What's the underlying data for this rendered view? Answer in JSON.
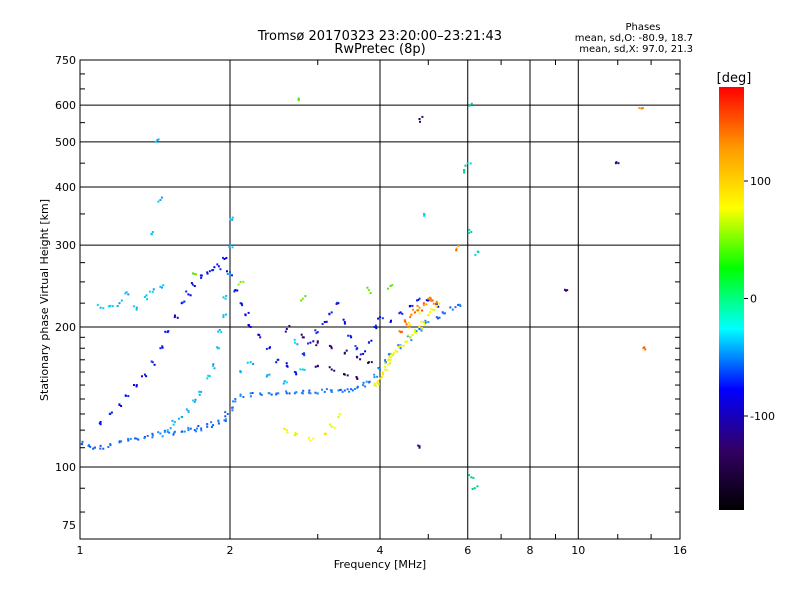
{
  "chart_data": {
    "type": "scatter",
    "title": "Tromsø 20170323 23:20:00–23:21:43",
    "subtitle": "RwPretec (8p)",
    "xlabel": "Frequency [MHz]",
    "ylabel": "Stationary phase Virtual Height [km]",
    "x_scale": "log",
    "y_scale": "log",
    "xlim": [
      1,
      16
    ],
    "ylim": [
      70,
      750
    ],
    "x_ticks": [
      1,
      2,
      4,
      6,
      8,
      10,
      16
    ],
    "y_ticks": [
      75,
      100,
      200,
      300,
      400,
      500,
      600,
      750
    ],
    "grid": true,
    "phase_info": {
      "title": "Phases",
      "line_o": "mean, sd,O: -80.9, 18.7",
      "line_x": "mean, sd,X:  97.0, 21.3"
    },
    "colorbar": {
      "label": "[deg]",
      "range": [
        -180,
        180
      ],
      "ticks": [
        100,
        0,
        -100
      ],
      "colors": [
        "#ff0000",
        "#ff9900",
        "#ffff00",
        "#00ff00",
        "#00ffff",
        "#0000ff",
        "#330066",
        "#000000"
      ]
    },
    "series": [
      {
        "values_note_free": true,
        "phase": -70,
        "points": [
          [
            1.01,
            112
          ],
          [
            1.04,
            111
          ],
          [
            1.07,
            110
          ],
          [
            1.1,
            111
          ],
          [
            1.15,
            112
          ],
          [
            1.2,
            113
          ],
          [
            1.25,
            114
          ],
          [
            1.3,
            115
          ],
          [
            1.35,
            116
          ],
          [
            1.4,
            117
          ],
          [
            1.45,
            118
          ],
          [
            1.5,
            119
          ],
          [
            1.55,
            119
          ],
          [
            1.6,
            119
          ],
          [
            1.65,
            120
          ],
          [
            1.7,
            120
          ],
          [
            1.75,
            121
          ],
          [
            1.8,
            122
          ],
          [
            1.85,
            123
          ],
          [
            1.9,
            124
          ],
          [
            1.95,
            126
          ],
          [
            1.98,
            130
          ],
          [
            2.02,
            134
          ],
          [
            2.05,
            140
          ],
          [
            2.1,
            143
          ],
          [
            2.2,
            144
          ],
          [
            2.3,
            144
          ],
          [
            2.4,
            144
          ],
          [
            2.5,
            144
          ],
          [
            2.6,
            144
          ],
          [
            2.7,
            144
          ],
          [
            2.8,
            144
          ],
          [
            2.9,
            144
          ],
          [
            3.0,
            144
          ],
          [
            3.1,
            145
          ],
          [
            3.2,
            145
          ],
          [
            3.3,
            146
          ],
          [
            3.4,
            146
          ],
          [
            3.5,
            147
          ],
          [
            3.6,
            148
          ],
          [
            3.7,
            150
          ],
          [
            3.8,
            152
          ],
          [
            3.9,
            156
          ],
          [
            4.0,
            162
          ],
          [
            4.1,
            168
          ],
          [
            4.2,
            175
          ],
          [
            4.4,
            180
          ],
          [
            4.6,
            190
          ],
          [
            4.8,
            198
          ],
          [
            5.0,
            205
          ],
          [
            5.2,
            210
          ],
          [
            5.4,
            214
          ],
          [
            5.6,
            218
          ],
          [
            5.8,
            222
          ]
        ]
      },
      {
        "phase": -105,
        "points": [
          [
            1.1,
            125
          ],
          [
            1.15,
            130
          ],
          [
            1.2,
            136
          ],
          [
            1.25,
            142
          ],
          [
            1.3,
            150
          ],
          [
            1.35,
            158
          ],
          [
            1.4,
            168
          ],
          [
            1.45,
            180
          ],
          [
            1.5,
            195
          ],
          [
            1.55,
            210
          ],
          [
            1.6,
            225
          ],
          [
            1.65,
            235
          ],
          [
            1.7,
            245
          ],
          [
            1.75,
            255
          ],
          [
            1.8,
            262
          ],
          [
            1.85,
            265
          ],
          [
            1.9,
            270
          ],
          [
            1.95,
            280
          ],
          [
            2.0,
            262
          ],
          [
            2.05,
            240
          ],
          [
            2.1,
            225
          ],
          [
            2.15,
            212
          ],
          [
            2.2,
            200
          ],
          [
            2.3,
            190
          ],
          [
            2.4,
            180
          ],
          [
            2.5,
            170
          ],
          [
            2.6,
            165
          ],
          [
            2.7,
            160
          ],
          [
            2.8,
            175
          ],
          [
            2.9,
            185
          ],
          [
            3.0,
            195
          ],
          [
            3.1,
            205
          ],
          [
            3.2,
            215
          ],
          [
            3.3,
            225
          ],
          [
            3.4,
            205
          ],
          [
            3.5,
            190
          ],
          [
            3.6,
            180
          ],
          [
            3.7,
            175
          ],
          [
            3.8,
            185
          ],
          [
            3.9,
            200
          ],
          [
            4.0,
            210
          ],
          [
            4.2,
            205
          ],
          [
            4.4,
            215
          ],
          [
            4.6,
            222
          ],
          [
            4.8,
            230
          ],
          [
            5.0,
            228
          ],
          [
            5.2,
            224
          ]
        ]
      },
      {
        "phase": -45,
        "points": [
          [
            1.5,
            120
          ],
          [
            1.55,
            125
          ],
          [
            1.6,
            128
          ],
          [
            1.65,
            132
          ],
          [
            1.7,
            138
          ],
          [
            1.75,
            145
          ],
          [
            1.8,
            155
          ],
          [
            1.85,
            165
          ],
          [
            1.9,
            180
          ],
          [
            1.92,
            195
          ],
          [
            1.94,
            210
          ],
          [
            1.96,
            230
          ],
          [
            1.98,
            260
          ],
          [
            2.0,
            300
          ],
          [
            2.02,
            340
          ],
          [
            1.3,
            220
          ],
          [
            1.35,
            232
          ],
          [
            1.4,
            238
          ],
          [
            1.45,
            244
          ],
          [
            1.25,
            235
          ],
          [
            1.2,
            225
          ],
          [
            1.15,
            222
          ],
          [
            1.1,
            220
          ],
          [
            1.45,
            375
          ],
          [
            1.4,
            320
          ],
          [
            1.42,
            500
          ],
          [
            2.1,
            160
          ],
          [
            2.2,
            168
          ],
          [
            2.4,
            158
          ],
          [
            2.6,
            152
          ],
          [
            2.8,
            162
          ],
          [
            2.7,
            185
          ]
        ]
      },
      {
        "phase": 95,
        "points": [
          [
            3.9,
            150
          ],
          [
            3.95,
            152
          ],
          [
            4.0,
            155
          ],
          [
            4.05,
            158
          ],
          [
            4.1,
            162
          ],
          [
            4.15,
            166
          ],
          [
            4.2,
            170
          ],
          [
            4.25,
            174
          ],
          [
            4.3,
            178
          ],
          [
            4.4,
            182
          ],
          [
            4.5,
            186
          ],
          [
            4.6,
            190
          ],
          [
            4.7,
            195
          ],
          [
            4.8,
            200
          ],
          [
            4.9,
            205
          ],
          [
            5.0,
            212
          ],
          [
            5.1,
            218
          ],
          [
            5.2,
            222
          ],
          [
            3.3,
            128
          ],
          [
            3.2,
            122
          ],
          [
            3.1,
            118
          ],
          [
            2.9,
            114
          ],
          [
            2.6,
            120
          ],
          [
            2.7,
            117
          ],
          [
            4.6,
            202
          ],
          [
            4.8,
            214
          ]
        ]
      },
      {
        "phase": 140,
        "points": [
          [
            4.5,
            205
          ],
          [
            4.6,
            210
          ],
          [
            4.7,
            215
          ],
          [
            4.8,
            220
          ],
          [
            4.9,
            225
          ],
          [
            5.0,
            230
          ],
          [
            5.1,
            228
          ],
          [
            5.2,
            225
          ],
          [
            4.4,
            195
          ],
          [
            4.55,
            200
          ],
          [
            13.5,
            180
          ],
          [
            13.4,
            590
          ],
          [
            5.7,
            295
          ]
        ]
      },
      {
        "phase": -150,
        "points": [
          [
            2.6,
            198
          ],
          [
            2.8,
            190
          ],
          [
            3.0,
            185
          ],
          [
            3.2,
            180
          ],
          [
            3.4,
            176
          ],
          [
            3.6,
            172
          ],
          [
            3.8,
            168
          ],
          [
            3.0,
            165
          ],
          [
            3.2,
            162
          ],
          [
            3.4,
            158
          ],
          [
            3.6,
            155
          ],
          [
            11.9,
            450
          ],
          [
            9.5,
            240
          ],
          [
            4.8,
            110
          ],
          [
            4.8,
            560
          ]
        ]
      },
      {
        "phase": -10,
        "points": [
          [
            6.05,
            600
          ],
          [
            6.1,
            320
          ],
          [
            6.0,
            450
          ],
          [
            4.9,
            350
          ],
          [
            6.2,
            90
          ],
          [
            6.1,
            95
          ],
          [
            6.3,
            290
          ],
          [
            5.9,
            430
          ]
        ]
      },
      {
        "phase": 45,
        "points": [
          [
            2.75,
            615
          ],
          [
            2.8,
            230
          ],
          [
            3.8,
            240
          ],
          [
            4.2,
            245
          ],
          [
            2.1,
            250
          ],
          [
            1.7,
            260
          ]
        ]
      }
    ]
  }
}
